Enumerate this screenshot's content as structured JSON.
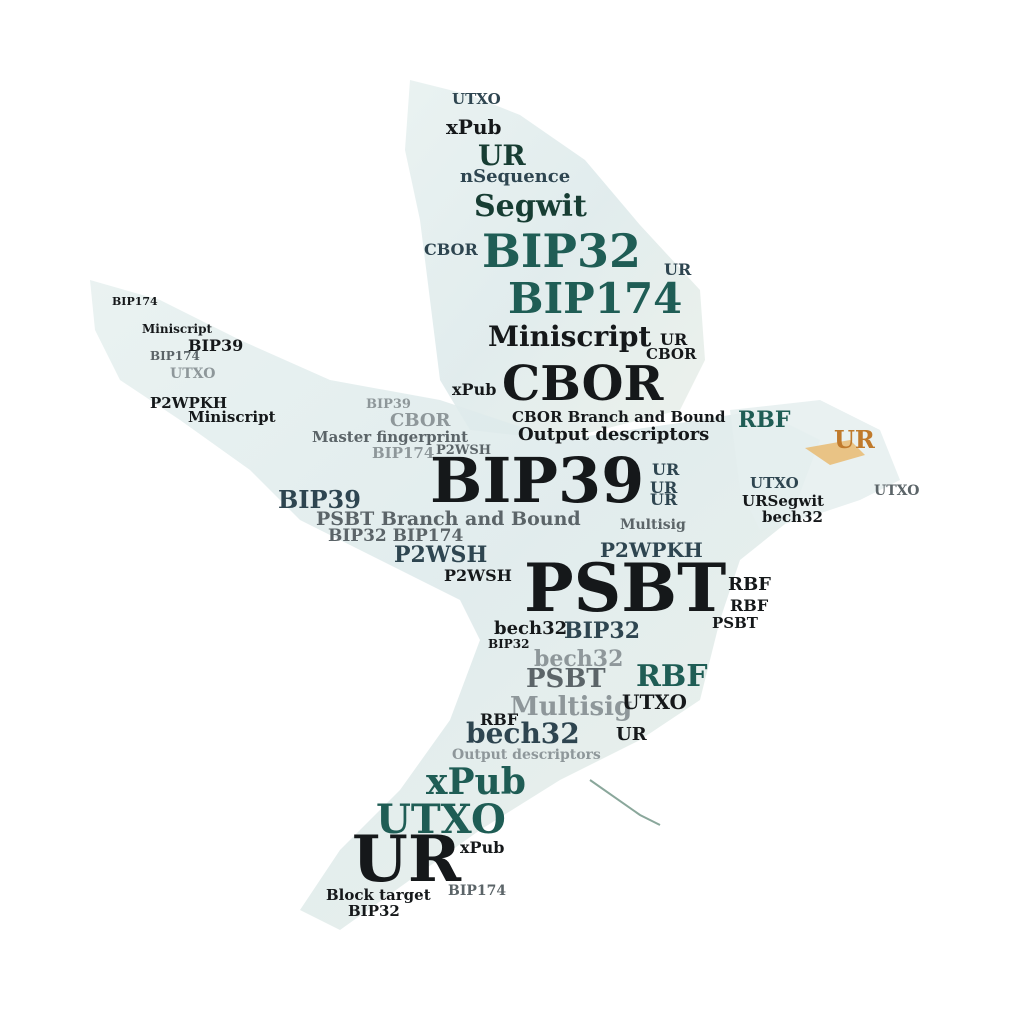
{
  "image": {
    "subject": "word-cloud-bird",
    "words": [
      {
        "text": "UTXO"
      },
      {
        "text": "xPub"
      },
      {
        "text": "UR"
      },
      {
        "text": "nSequence"
      },
      {
        "text": "Segwit"
      },
      {
        "text": "CBOR"
      },
      {
        "text": "BIP32"
      },
      {
        "text": "UR"
      },
      {
        "text": "BIP174"
      },
      {
        "text": "Miniscript"
      },
      {
        "text": "UR"
      },
      {
        "text": "CBOR"
      },
      {
        "text": "BIP39"
      },
      {
        "text": "BIP174"
      },
      {
        "text": "BIP174"
      },
      {
        "text": "UTXO"
      },
      {
        "text": "Miniscript"
      },
      {
        "text": "xPub"
      },
      {
        "text": "CBOR"
      },
      {
        "text": "P2WPKH"
      },
      {
        "text": "Miniscript"
      },
      {
        "text": "RBF"
      },
      {
        "text": "BIP39"
      },
      {
        "text": "CBOR"
      },
      {
        "text": "CBOR Branch and Bound"
      },
      {
        "text": "Output descriptors"
      },
      {
        "text": "UR"
      },
      {
        "text": "Master fingerprint"
      },
      {
        "text": "P2WSH"
      },
      {
        "text": "BIP174"
      },
      {
        "text": "BIP39"
      },
      {
        "text": "UR"
      },
      {
        "text": "UTXO"
      },
      {
        "text": "UR"
      },
      {
        "text": "URSegwit"
      },
      {
        "text": "UR"
      },
      {
        "text": "UTXO"
      },
      {
        "text": "bech32"
      },
      {
        "text": "BIP39"
      },
      {
        "text": "PSBT Branch and Bound"
      },
      {
        "text": "Multisig"
      },
      {
        "text": "BIP32 BIP174"
      },
      {
        "text": "P2WSH"
      },
      {
        "text": "P2WPKH"
      },
      {
        "text": "P2WSH"
      },
      {
        "text": "PSBT"
      },
      {
        "text": "RBF"
      },
      {
        "text": "BIP32"
      },
      {
        "text": "RBF"
      },
      {
        "text": "PSBT"
      },
      {
        "text": "bech32"
      },
      {
        "text": "BIP32"
      },
      {
        "text": "bech32"
      },
      {
        "text": "PSBT"
      },
      {
        "text": "RBF"
      },
      {
        "text": "Multisig"
      },
      {
        "text": "UTXO"
      },
      {
        "text": "RBF"
      },
      {
        "text": "bech32"
      },
      {
        "text": "UR"
      },
      {
        "text": "Output descriptors"
      },
      {
        "text": "xPub"
      },
      {
        "text": "UTXO"
      },
      {
        "text": "xPub"
      },
      {
        "text": "UR"
      },
      {
        "text": "BIP174"
      },
      {
        "text": "Block target"
      },
      {
        "text": "BIP32"
      }
    ]
  }
}
